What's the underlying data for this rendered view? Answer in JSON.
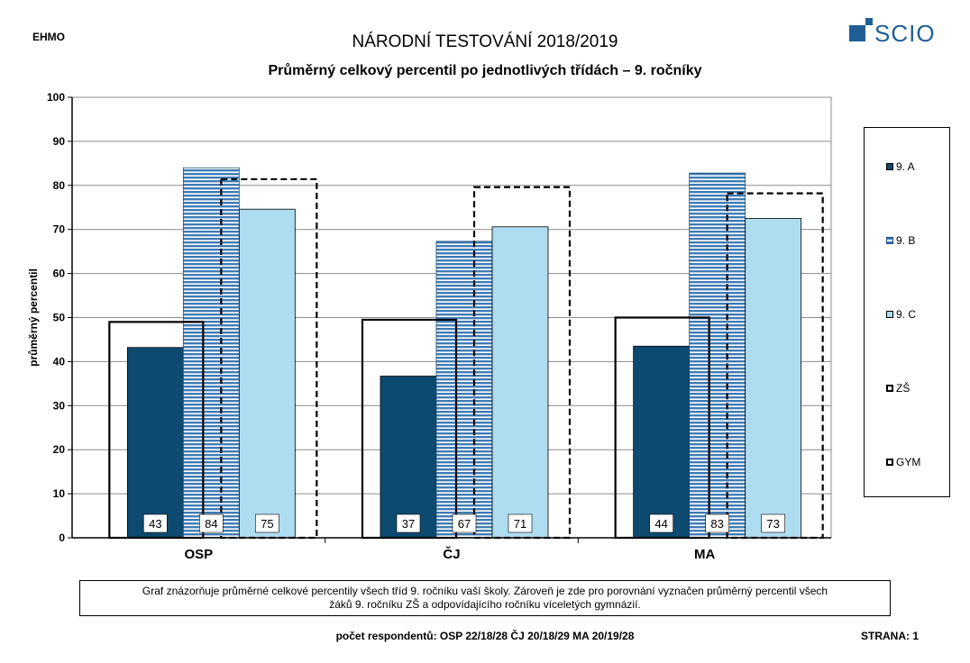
{
  "header": {
    "school": "EHMO",
    "title": "NÁRODNÍ TESTOVÁNÍ 2018/2019",
    "subtitle": "Průměrný celkový percentil po jednotlivých třídách – 9. ročníky",
    "logo_text": "SCIO"
  },
  "colors": {
    "9A": "#0d4a70",
    "9B": "#3f7cb5",
    "9C": "#aedcf0",
    "brand": "#1f5f95"
  },
  "chart_data": {
    "type": "bar",
    "title": "Průměrný celkový percentil po jednotlivých třídách – 9. ročníky",
    "ylabel": "průměrný percentil",
    "xlabel": "",
    "ylim": [
      0,
      100
    ],
    "yticks": [
      0,
      10,
      20,
      30,
      40,
      50,
      60,
      70,
      80,
      90,
      100
    ],
    "grid": true,
    "legend_position": "right",
    "categories": [
      "OSP",
      "ČJ",
      "MA"
    ],
    "series": [
      {
        "name": "9. A",
        "values": [
          43.2,
          36.7,
          43.5
        ],
        "labels": [
          "43",
          "37",
          "44"
        ],
        "style": "solid-dark"
      },
      {
        "name": "9. B",
        "values": [
          84.0,
          67.3,
          82.8
        ],
        "labels": [
          "84",
          "67",
          "83"
        ],
        "style": "striped"
      },
      {
        "name": "9. C",
        "values": [
          74.6,
          70.6,
          72.5
        ],
        "labels": [
          "75",
          "71",
          "73"
        ],
        "style": "solid-light"
      }
    ],
    "references": [
      {
        "name": "ZŠ",
        "values": [
          49.0,
          49.5,
          50.0
        ],
        "style": "solid-outline"
      },
      {
        "name": "GYM",
        "values": [
          81.4,
          79.6,
          78.2
        ],
        "style": "dashed-outline"
      }
    ]
  },
  "note": {
    "line1": "Graf znázorňuje průměrné celkové percentily všech tříd 9. ročníku vaší školy. Zároveň je zde pro porovnání vyznačen průměrný percentil všech",
    "line2": "žáků  9. ročníku ZŠ a odpovídajícího ročníku víceletých gymnázií."
  },
  "footer": {
    "respondents": "počet respondentů: OSP 22/18/28  ČJ 20/18/29  MA 20/19/28",
    "page": "STRANA: 1"
  }
}
